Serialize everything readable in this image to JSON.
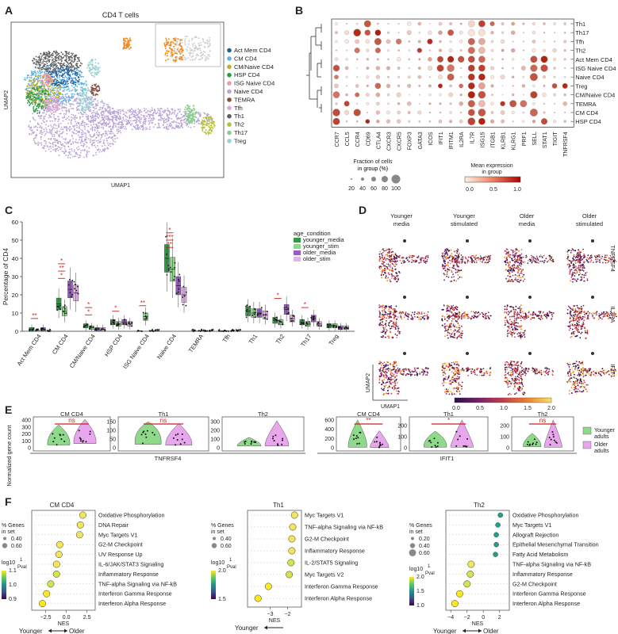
{
  "panel_letters": [
    "A",
    "B",
    "C",
    "D",
    "E",
    "F"
  ],
  "colors": {
    "Act Mem CD4": "#1f5fa8",
    "CM CD4": "#5ab4e6",
    "CM/Naive CD4": "#c3ad2e",
    "HSP CD4": "#2e9a41",
    "ISG Naive CD4": "#f09aa6",
    "Naive CD4": "#b7a4d4",
    "TEMRA": "#8a4f44",
    "Tfh": "#e4a6d4",
    "Th1": "#5e5e5e",
    "Th2": "#b6c235",
    "Th17": "#86d08a",
    "Treg": "#97d3d6",
    "orange": "#f28a1a",
    "younger_media": "#2f9a43",
    "younger_stim": "#8ed98a",
    "older_media": "#9b59c4",
    "older_stim": "#e4b2ea",
    "sig": "#cc1f1f"
  },
  "panel_a": {
    "title": "CD4 T cells",
    "xlabel": "UMAP1",
    "ylabel": "UMAP2",
    "legend": [
      "Act Mem CD4",
      "CM CD4",
      "CM/Naive CD4",
      "HSP CD4",
      "ISG Naive CD4",
      "Naive CD4",
      "TEMRA",
      "Tfh",
      "Th1",
      "Th2",
      "Th17",
      "Treg"
    ]
  },
  "panel_b": {
    "genes": [
      "CCR7",
      "CCL5",
      "CCR4",
      "CD69",
      "CTLA4",
      "CXCR3",
      "CXCR5",
      "FOXP3",
      "GATA3",
      "ICOS",
      "IFIT1",
      "IFITM1",
      "IL2RA",
      "IL7R",
      "ISG15",
      "ITGB1",
      "KLRB1",
      "KLRG1",
      "PRF1",
      "SELL",
      "STAT1",
      "TIGIT",
      "TNFRSF4"
    ],
    "clusters": [
      "Th1",
      "Th17",
      "Tfh",
      "Th2",
      "Act Mem CD4",
      "ISG Naive CD4",
      "Naive CD4",
      "Treg",
      "CM/Naive CD4",
      "TEMRA",
      "CM CD4",
      "HSP CD4"
    ],
    "size_legend_title": "Fraction of cells in group (%)",
    "size_legend_ticks": [
      "20",
      "40",
      "60",
      "80",
      "100"
    ],
    "color_legend_title": "Mean expression in group",
    "color_legend_ticks": [
      "0.0",
      "0.5",
      "1.0"
    ]
  },
  "panel_c": {
    "ylabel": "Percentage of CD4",
    "legend_title": "age_condition",
    "legend": [
      "younger_media",
      "younger_stim",
      "older_media",
      "older_stim"
    ],
    "ylim": [
      0,
      60
    ],
    "yticks": [
      "0",
      "10",
      "20",
      "30",
      "40",
      "50",
      "60"
    ],
    "categories": [
      "Act Mem CD4",
      "CM CD4",
      "CM/Naive CD4",
      "HSP CD4",
      "ISG Naive CD4",
      "Naive CD4",
      "TEMRA",
      "Tfh",
      "Th1",
      "Th2",
      "Th17",
      "Treg"
    ],
    "medians": [
      [
        1,
        0.5,
        1,
        0.5
      ],
      [
        15,
        11,
        23,
        21
      ],
      [
        3,
        2,
        1,
        1
      ],
      [
        5,
        4,
        5,
        4
      ],
      [
        0.2,
        8,
        0.3,
        0.3
      ],
      [
        40,
        34,
        25,
        20
      ],
      [
        0.3,
        0.3,
        0.3,
        0.3
      ],
      [
        0.2,
        0.2,
        0.2,
        0.2
      ],
      [
        11,
        10,
        10,
        9
      ],
      [
        6,
        5,
        12,
        7
      ],
      [
        5,
        4,
        7,
        4
      ],
      [
        3,
        3,
        2,
        2
      ]
    ],
    "sig": [
      [
        "**"
      ],
      [
        "*",
        "**",
        "*"
      ],
      [
        "*",
        "*"
      ],
      [
        "*"
      ],
      [
        "**"
      ],
      [
        "**",
        "***",
        "*"
      ],
      [],
      [],
      [],
      [
        "*"
      ],
      [
        "*"
      ],
      []
    ]
  },
  "panel_d": {
    "columns": [
      "Younger media",
      "Younger stimulated",
      "Older media",
      "Older stimulated"
    ],
    "rows": [
      "TNFRSF4",
      "IL2RA",
      "IFIT1"
    ],
    "xlabel": "UMAP1",
    "ylabel": "UMAP2",
    "colorbar_ticks": [
      "0.0",
      "0.5",
      "1.0",
      "1.5",
      "2.0"
    ]
  },
  "panel_e": {
    "ylabel": "Normalized gene count",
    "groups": [
      {
        "gene": "TNFRSF4",
        "plots": [
          {
            "title": "CM CD4",
            "yticks": [
              "0",
              "100",
              "200",
              "300",
              "400"
            ],
            "ymax": 400,
            "sig": "ns",
            "young": [
              180,
              40,
              330
            ],
            "old": [
              200,
              60,
              410
            ]
          },
          {
            "title": "Th1",
            "yticks": [
              "0",
              "50",
              "100",
              "150"
            ],
            "ymax": 160,
            "sig": "ns",
            "young": [
              100,
              20,
              150
            ],
            "old": [
              60,
              15,
              140
            ]
          },
          {
            "title": "Th2",
            "yticks": [
              "0",
              "100",
              "200",
              "300"
            ],
            "ymax": 320,
            "sig": "",
            "young": [
              50,
              20,
              120
            ],
            "old": [
              80,
              20,
              310
            ]
          }
        ]
      },
      {
        "gene": "IFIT1",
        "plots": [
          {
            "title": "CM CD4",
            "yticks": [
              "0",
              "200",
              "400",
              "600"
            ],
            "ymax": 600,
            "sig": "**",
            "young": [
              180,
              10,
              600
            ],
            "old": [
              60,
              5,
              370
            ]
          },
          {
            "title": "Th1",
            "yticks": [
              "0",
              "100",
              "200"
            ],
            "ymax": 250,
            "sig": "*",
            "young": [
              70,
              5,
              150
            ],
            "old": [
              20,
              5,
              250
            ]
          },
          {
            "title": "Th2",
            "yticks": [
              "0",
              "100",
              "200"
            ],
            "ymax": 250,
            "sig": "ns",
            "young": [
              60,
              10,
              130
            ],
            "old": [
              20,
              5,
              250
            ]
          }
        ]
      }
    ],
    "legend": [
      "Younger adults",
      "Older adults"
    ]
  },
  "panel_f": {
    "xlabel": "NES",
    "axis_note_left": "Younger",
    "axis_note_right": "Older",
    "size_title": "% Genes in set",
    "color_title_parts": [
      "log10",
      "1",
      "Pval"
    ],
    "plots": [
      {
        "title": "CM  CD4",
        "xlim": [
          -4.2,
          3.5
        ],
        "xticks": [
          -2.5,
          0,
          2.5
        ],
        "xtick_labels": [
          "−2.5",
          "0.0",
          "2.5"
        ],
        "sizes": [
          "0.40",
          "0.60"
        ],
        "colorbar": [
          "0.9",
          "1.0",
          "1.1"
        ],
        "terms": [
          [
            "Oxidative Phosphorylation",
            2.0
          ],
          [
            "DNA Repair",
            1.7
          ],
          [
            "Myc Targets V1",
            1.6
          ],
          [
            "G2-M Checkpoint",
            -0.8
          ],
          [
            "UV Response Up",
            -0.9
          ],
          [
            "IL-6/JAK/STAT3 Signaling",
            -1.2
          ],
          [
            "Inflammatory Response",
            -1.2
          ],
          [
            "TNF-alpha Signaling via NF-kB",
            -1.9
          ],
          [
            "Interferon Gamma Response",
            -2.4
          ],
          [
            "Interferon Alpha Response",
            -2.9
          ]
        ]
      },
      {
        "title": "Th1",
        "xlim": [
          -4.3,
          -1.2
        ],
        "xticks": [
          -3,
          -2
        ],
        "xtick_labels": [
          "−3",
          "−2"
        ],
        "sizes": [
          "0.40",
          "0.60"
        ],
        "colorbar": [
          "1.5",
          "2.0"
        ],
        "terms": [
          [
            "Myc Targets V1",
            -1.6
          ],
          [
            "TNF-alpha Signaling via NF-kB",
            -1.7
          ],
          [
            "G2-M Checkpoint",
            -1.75
          ],
          [
            "Inflammatory Response",
            -1.75
          ],
          [
            "IL-2/STAT5 Signaling",
            -1.8
          ],
          [
            "Myc Targets V2",
            -1.9
          ],
          [
            "Interferon Gamma Response",
            -3.1
          ],
          [
            "Interferon Alpha Response",
            -3.7
          ]
        ]
      },
      {
        "title": "Th2",
        "xlim": [
          -4.6,
          3.2
        ],
        "xticks": [
          -4,
          -2,
          0,
          2
        ],
        "xtick_labels": [
          "−4",
          "−2",
          "0",
          "2"
        ],
        "sizes": [
          "0.20",
          "0.40",
          "0.60"
        ],
        "colorbar": [
          "1.0",
          "1.5",
          "2.0"
        ],
        "terms": [
          [
            "Oxidative Phosphorylation",
            2.1
          ],
          [
            "Myc Targets V1",
            1.8
          ],
          [
            "Allograft Rejection",
            1.6
          ],
          [
            "Epithelial Mesenchymal Transition",
            1.6
          ],
          [
            "Fatty Acid Metabolism",
            1.5
          ],
          [
            "TNF-alpha Signaling via NF-kB",
            -1.5
          ],
          [
            "Inflammatory Response",
            -1.6
          ],
          [
            "G2-M Checkpoint",
            -2.0
          ],
          [
            "Interferon Gamma Response",
            -2.9
          ],
          [
            "Interferon Alpha Response",
            -3.5
          ]
        ]
      }
    ]
  },
  "chart_data": [
    {
      "type": "scatter",
      "title": "CD4 T cells",
      "xlabel": "UMAP1",
      "ylabel": "UMAP2",
      "series": [
        {
          "name": "Act Mem CD4"
        },
        {
          "name": "CM CD4"
        },
        {
          "name": "CM/Naive CD4"
        },
        {
          "name": "HSP CD4"
        },
        {
          "name": "ISG Naive CD4"
        },
        {
          "name": "Naive CD4"
        },
        {
          "name": "TEMRA"
        },
        {
          "name": "Tfh"
        },
        {
          "name": "Th1"
        },
        {
          "name": "Th2"
        },
        {
          "name": "Th17"
        },
        {
          "name": "Treg"
        }
      ]
    },
    {
      "type": "heatmap",
      "xlabel": "",
      "ylabel": "",
      "x": [
        "CCR7",
        "CCL5",
        "CCR4",
        "CD69",
        "CTLA4",
        "CXCR3",
        "CXCR5",
        "FOXP3",
        "GATA3",
        "ICOS",
        "IFIT1",
        "IFITM1",
        "IL2RA",
        "IL7R",
        "ISG15",
        "ITGB1",
        "KLRB1",
        "KLRG1",
        "PRF1",
        "SELL",
        "STAT1",
        "TIGIT",
        "TNFRSF4"
      ],
      "y": [
        "Th1",
        "Th17",
        "Tfh",
        "Th2",
        "Act Mem CD4",
        "ISG Naive CD4",
        "Naive CD4",
        "Treg",
        "CM/Naive CD4",
        "TEMRA",
        "CM CD4",
        "HSP CD4"
      ]
    },
    {
      "type": "bar",
      "title": "",
      "xlabel": "",
      "ylabel": "Percentage of CD4",
      "ylim": [
        0,
        60
      ],
      "categories": [
        "Act Mem CD4",
        "CM CD4",
        "CM/Naive CD4",
        "HSP CD4",
        "ISG Naive CD4",
        "Naive CD4",
        "TEMRA",
        "Tfh",
        "Th1",
        "Th2",
        "Th17",
        "Treg"
      ],
      "series": [
        {
          "name": "younger_media",
          "values": [
            1,
            15,
            3,
            5,
            0.2,
            40,
            0.3,
            0.2,
            11,
            6,
            5,
            3
          ]
        },
        {
          "name": "younger_stim",
          "values": [
            0.5,
            11,
            2,
            4,
            8,
            34,
            0.3,
            0.2,
            10,
            5,
            4,
            3
          ]
        },
        {
          "name": "older_media",
          "values": [
            1,
            23,
            1,
            5,
            0.3,
            25,
            0.3,
            0.2,
            10,
            12,
            7,
            2
          ]
        },
        {
          "name": "older_stim",
          "values": [
            0.5,
            21,
            1,
            4,
            0.3,
            20,
            0.3,
            0.2,
            9,
            7,
            4,
            2
          ]
        }
      ]
    },
    {
      "type": "bar",
      "xlabel": "NES",
      "ylabel": "",
      "categories": [
        "Oxidative Phosphorylation",
        "DNA Repair",
        "Myc Targets V1",
        "G2-M Checkpoint",
        "UV Response Up",
        "IL-6/JAK/STAT3 Signaling",
        "Inflammatory Response",
        "TNF-alpha Signaling via NF-kB",
        "Interferon Gamma Response",
        "Interferon Alpha Response"
      ],
      "values": [
        2.0,
        1.7,
        1.6,
        -0.8,
        -0.9,
        -1.2,
        -1.2,
        -1.9,
        -2.4,
        -2.9
      ],
      "title": "CM  CD4"
    }
  ]
}
